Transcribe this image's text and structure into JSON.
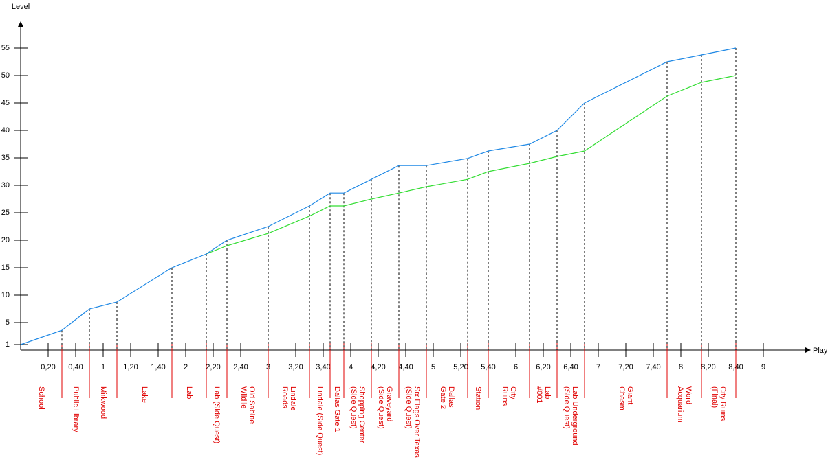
{
  "chart_data": {
    "type": "line",
    "ylabel": "Level",
    "xlabel": "Playtime",
    "x": [
      0,
      0.5,
      0.8333,
      1.1667,
      1.8333,
      2.25,
      2.5,
      3.0,
      3.5,
      3.75,
      3.9167,
      4.25,
      4.5833,
      4.9167,
      5.4167,
      5.6667,
      6.1667,
      6.5,
      6.8333,
      7.8333,
      8.25,
      8.6667
    ],
    "series": [
      {
        "color": "#1e88e5",
        "values": [
          1,
          3.6,
          7.5,
          8.75,
          15,
          17.5,
          20,
          22.5,
          26.25,
          28.6,
          28.6,
          31.1,
          33.6,
          33.6,
          34.9,
          36.25,
          37.5,
          40,
          45,
          52.5,
          53.75,
          55
        ]
      },
      {
        "color": "#33dd33",
        "values": [
          null,
          null,
          null,
          null,
          null,
          17.5,
          19,
          21.25,
          24.4,
          26.25,
          26.25,
          27.5,
          28.6,
          29.75,
          31.1,
          32.5,
          34,
          35.25,
          36.25,
          46.25,
          48.75,
          50
        ]
      }
    ],
    "locations": [
      [
        "School"
      ],
      [
        "Public Library"
      ],
      [
        "Mirkwood"
      ],
      [
        "Lake"
      ],
      [
        "Lab"
      ],
      [
        "Lab (Side Quest)"
      ],
      [
        "Old Sabine",
        "Wildlie"
      ],
      [
        "Lindale",
        "Roads"
      ],
      [
        "Lindale (Side Quest)"
      ],
      [
        "Dallas Gate 1"
      ],
      [
        "Shopping Center",
        "(Side Quest)"
      ],
      [
        "Graveyard",
        "(Side Quest)"
      ],
      [
        "Six Flags Over Texas",
        "(Side Quest)"
      ],
      [
        "Dallas",
        "Gate 2"
      ],
      [
        "Station"
      ],
      [
        "City",
        "Ruins"
      ],
      [
        "Lab",
        "#001"
      ],
      [
        "Lab Underground",
        "(Side Quest)"
      ],
      [
        "Giant",
        "Chasm"
      ],
      [
        "Word",
        "Acquarium"
      ],
      [
        "City Ruins",
        "(Final)"
      ]
    ],
    "location_color": "#e00000",
    "xlim": [
      0,
      9.5833
    ],
    "ylim": [
      0,
      59.75
    ],
    "xticks": [
      {
        "value": 0.3333,
        "label": "0,20"
      },
      {
        "value": 0.6667,
        "label": "0,40"
      },
      1,
      {
        "value": 1.3333,
        "label": "1,20"
      },
      {
        "value": 1.6667,
        "label": "1,40"
      },
      2,
      {
        "value": 2.3333,
        "label": "2,20"
      },
      {
        "value": 2.6667,
        "label": "2,40"
      },
      3,
      {
        "value": 3.3333,
        "label": "3,20"
      },
      {
        "value": 3.6667,
        "label": "3,40"
      },
      4,
      {
        "value": 4.3333,
        "label": "4,20"
      },
      {
        "value": 4.6667,
        "label": "4,40"
      },
      5,
      {
        "value": 5.3333,
        "label": "5,20"
      },
      {
        "value": 5.6667,
        "label": "5,40"
      },
      6,
      {
        "value": 6.3333,
        "label": "6,20"
      },
      {
        "value": 6.6667,
        "label": "6,40"
      },
      7,
      {
        "value": 7.3333,
        "label": "7,20"
      },
      {
        "value": 7.6667,
        "label": "7,40"
      },
      8,
      {
        "value": 8.3333,
        "label": "8,20"
      },
      {
        "value": 8.6667,
        "label": "8,40"
      },
      9
    ],
    "yticks": [
      1,
      5,
      10,
      15,
      20,
      25,
      30,
      35,
      40,
      45,
      50,
      55
    ]
  }
}
